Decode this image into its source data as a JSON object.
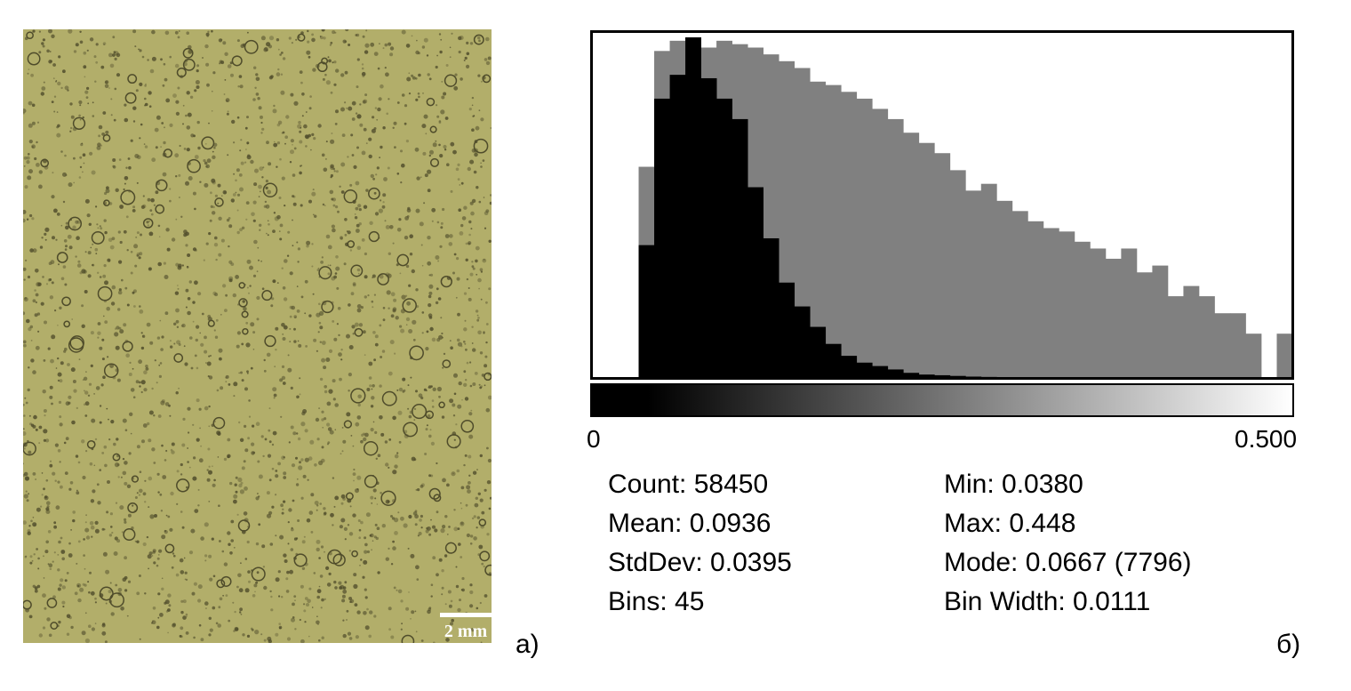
{
  "panels": {
    "a_label": "а)",
    "b_label": "б)"
  },
  "photo": {
    "scale_label": "2 mm",
    "background_color": "#b2ae6a",
    "bubble_color": "#4f4c2b"
  },
  "chart_data": {
    "type": "bar",
    "xlim": [
      0,
      0.5
    ],
    "x_tick_labels": [
      "0",
      "0.500"
    ],
    "bins": 45,
    "colors": {
      "front": "#000000",
      "back": "#808080"
    },
    "series": [
      {
        "values": [
          0.62,
          0.96,
          0.99,
          1.0,
          0.97,
          0.99,
          0.98,
          0.97,
          0.95,
          0.93,
          0.91,
          0.87,
          0.86,
          0.84,
          0.82,
          0.79,
          0.76,
          0.72,
          0.69,
          0.66,
          0.61,
          0.55,
          0.57,
          0.52,
          0.49,
          0.46,
          0.44,
          0.43,
          0.4,
          0.38,
          0.35,
          0.38,
          0.31,
          0.33,
          0.24,
          0.27,
          0.24,
          0.19,
          0.19,
          0.13,
          0.0,
          0.13,
          0.15
        ]
      },
      {
        "values": [
          0.39,
          0.82,
          0.89,
          1.0,
          0.88,
          0.82,
          0.76,
          0.56,
          0.41,
          0.28,
          0.21,
          0.15,
          0.1,
          0.065,
          0.045,
          0.035,
          0.025,
          0.015,
          0.01,
          0.008,
          0.006,
          0.004,
          0.003,
          0.002,
          0.001
        ]
      }
    ]
  },
  "stats": {
    "count": "Count: 58450",
    "mean": "Mean: 0.0936",
    "stddev": "StdDev: 0.0395",
    "bins": "Bins: 45",
    "min": "Min: 0.0380",
    "max": "Max: 0.448",
    "mode": "Mode: 0.0667 (7796)",
    "bin_width": "Bin Width: 0.0111"
  }
}
